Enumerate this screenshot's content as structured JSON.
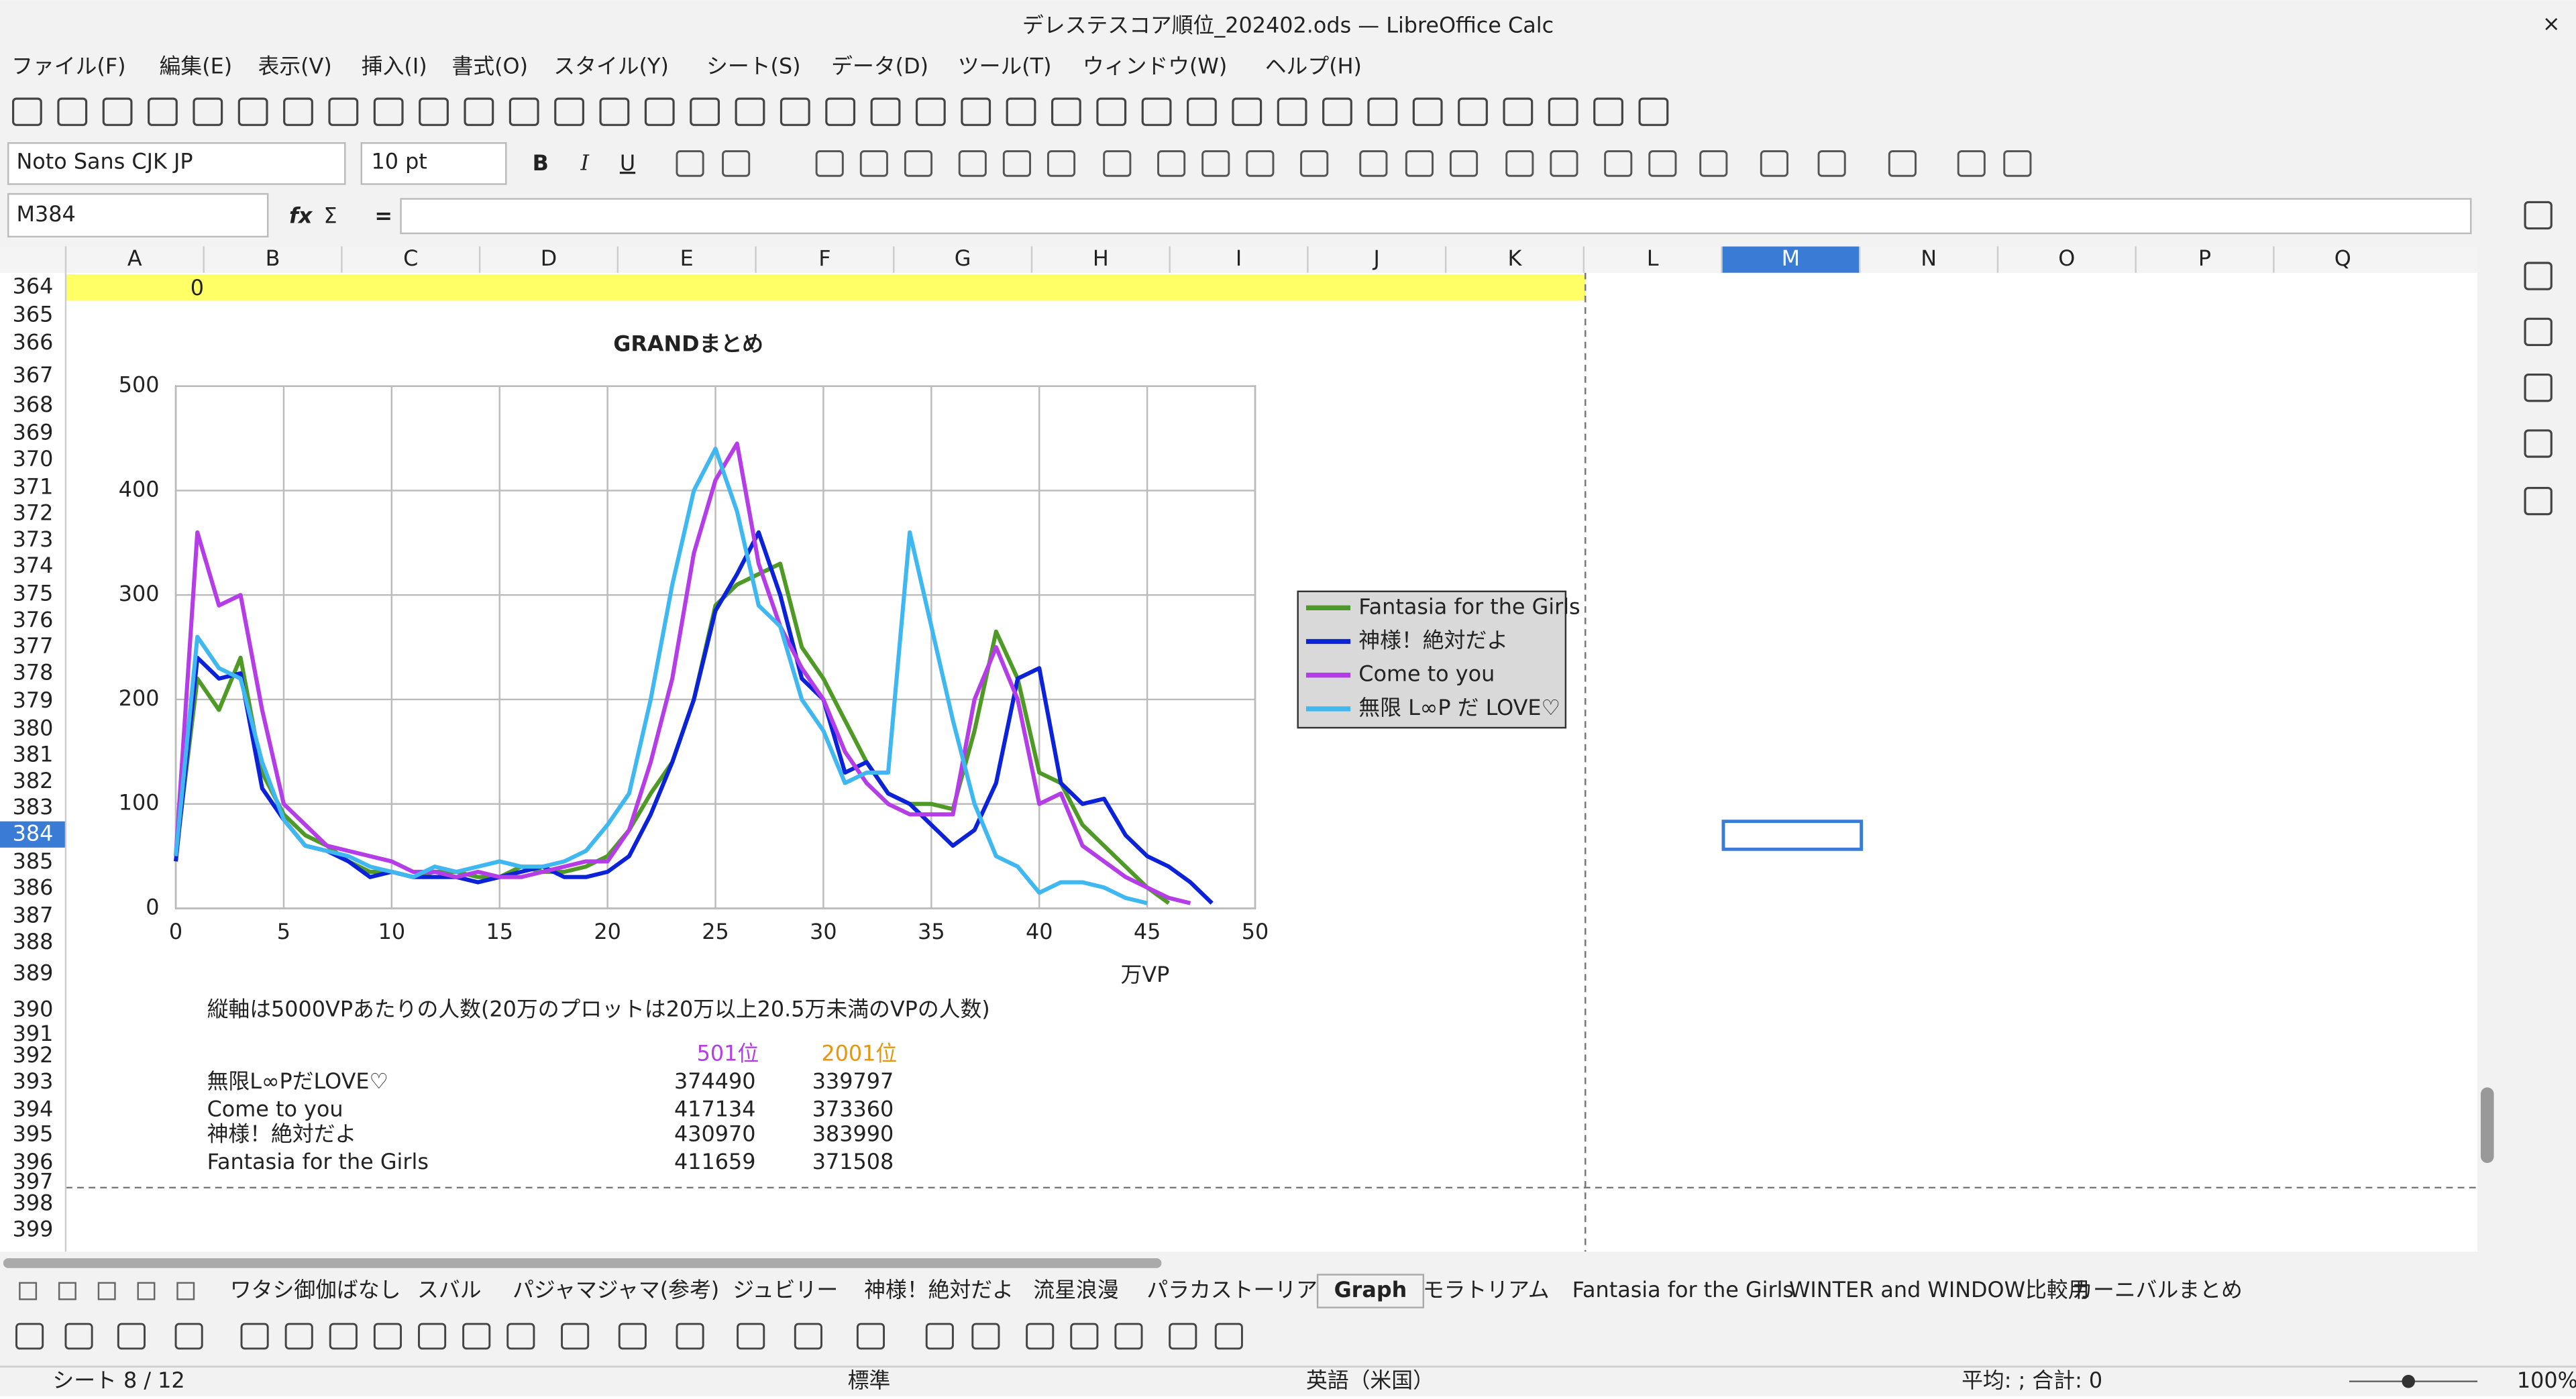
{
  "window": {
    "title": "デレステスコア順位_202402.ods — LibreOffice Calc",
    "close": "×"
  },
  "menu": [
    "ファイル(F)",
    "編集(E)",
    "表示(V)",
    "挿入(I)",
    "書式(O)",
    "スタイル(Y)",
    "シート(S)",
    "データ(D)",
    "ツール(T)",
    "ウィンドウ(W)",
    "ヘルプ(H)"
  ],
  "format_bar": {
    "font": "Noto Sans CJK JP",
    "size": "10 pt",
    "bold": "B",
    "italic": "I",
    "underline": "U"
  },
  "formula_bar": {
    "name_box": "M384",
    "fx": "fx",
    "sum": "Σ",
    "equals": "="
  },
  "sheet": {
    "columns": [
      "A",
      "B",
      "C",
      "D",
      "E",
      "F",
      "G",
      "H",
      "I",
      "J",
      "K",
      "L",
      "M",
      "N",
      "O",
      "P",
      "Q"
    ],
    "rows": [
      364,
      365,
      366,
      367,
      368,
      369,
      370,
      371,
      372,
      373,
      374,
      375,
      376,
      377,
      378,
      379,
      380,
      381,
      382,
      383,
      384,
      385,
      386,
      387,
      388,
      389,
      390,
      391,
      392,
      393,
      394,
      395,
      396,
      397,
      398,
      399
    ],
    "cell_a364": 0,
    "note": "縦軸は5000VPあたりの人数(20万のプロットは20万以上20.5万未満のVPの人数)",
    "rank_headers": [
      "501位",
      "2001位"
    ],
    "scores": [
      [
        "無限L∞PだLOVE♡",
        374490,
        339797
      ],
      [
        "Come to you",
        417134,
        373360
      ],
      [
        "神様！絶対だよ",
        430970,
        383990
      ],
      [
        "Fantasia for the Girls",
        411659,
        371508
      ]
    ]
  },
  "chart_data": {
    "type": "line",
    "title": "GRANDまとめ",
    "x_label": "万VP",
    "x": [
      0,
      1,
      2,
      3,
      4,
      5,
      6,
      7,
      8,
      9,
      10,
      11,
      12,
      13,
      14,
      15,
      16,
      17,
      18,
      19,
      20,
      21,
      22,
      23,
      24,
      25,
      26,
      27,
      28,
      29,
      30,
      31,
      32,
      33,
      34,
      35,
      36,
      37,
      38,
      39,
      40,
      41,
      42,
      43,
      44,
      45,
      46,
      47,
      48
    ],
    "xlim": [
      0,
      50
    ],
    "xticks": [
      0,
      5,
      10,
      15,
      20,
      25,
      30,
      35,
      40,
      45,
      50
    ],
    "ylim": [
      0,
      500
    ],
    "yticks": [
      0,
      100,
      200,
      300,
      400,
      500
    ],
    "grid": true,
    "legend": "right",
    "series": [
      {
        "name": "Fantasia for the Girls",
        "color": "#4f9a26",
        "values": [
          50,
          220,
          190,
          240,
          130,
          90,
          70,
          60,
          45,
          35,
          35,
          30,
          35,
          35,
          30,
          30,
          40,
          35,
          35,
          40,
          50,
          75,
          110,
          140,
          200,
          290,
          310,
          320,
          330,
          250,
          220,
          180,
          140,
          110,
          100,
          100,
          95,
          170,
          265,
          220,
          130,
          120,
          80,
          60,
          40,
          20,
          5,
          null,
          null
        ]
      },
      {
        "name": "神様！絶対だよ",
        "color": "#0b22d8",
        "values": [
          45,
          240,
          220,
          225,
          115,
          85,
          60,
          55,
          45,
          30,
          35,
          30,
          30,
          30,
          25,
          30,
          35,
          40,
          30,
          30,
          35,
          50,
          90,
          140,
          200,
          285,
          320,
          360,
          300,
          220,
          200,
          130,
          140,
          110,
          100,
          80,
          60,
          75,
          120,
          220,
          230,
          120,
          100,
          105,
          70,
          50,
          40,
          25,
          5
        ]
      },
      {
        "name": "Come to you",
        "color": "#b53de8",
        "values": [
          50,
          360,
          290,
          300,
          190,
          100,
          80,
          60,
          55,
          50,
          45,
          35,
          35,
          30,
          35,
          30,
          30,
          35,
          40,
          45,
          45,
          75,
          140,
          220,
          340,
          410,
          445,
          330,
          270,
          230,
          200,
          150,
          120,
          100,
          90,
          90,
          90,
          200,
          250,
          200,
          100,
          110,
          60,
          45,
          30,
          20,
          10,
          5,
          null
        ]
      },
      {
        "name": "無限 L∞P だ LOVE♡",
        "color": "#3fb7f1",
        "values": [
          50,
          260,
          230,
          220,
          140,
          85,
          60,
          55,
          50,
          40,
          35,
          30,
          40,
          35,
          40,
          45,
          40,
          40,
          45,
          55,
          80,
          110,
          200,
          310,
          400,
          440,
          380,
          290,
          270,
          200,
          170,
          120,
          130,
          130,
          360,
          270,
          180,
          100,
          50,
          40,
          15,
          25,
          25,
          20,
          10,
          5,
          null,
          null,
          null
        ]
      }
    ]
  },
  "tabs": [
    "ワタシ御伽ばなし",
    "スバル",
    "パジャマジャマ(参考)",
    "ジュビリー",
    "神様！絶対だよ",
    "流星浪漫",
    "パラカストーリア",
    "Graph",
    "モラトリアム",
    "Fantasia for the Girls",
    "WINTER and WINDOW比較用",
    "カーニバルまとめ"
  ],
  "status": {
    "sheet": "シート 8 / 12",
    "style": "標準",
    "language": "英語（米国）",
    "summary": "平均: ; 合計: 0",
    "zoom": "100%"
  }
}
